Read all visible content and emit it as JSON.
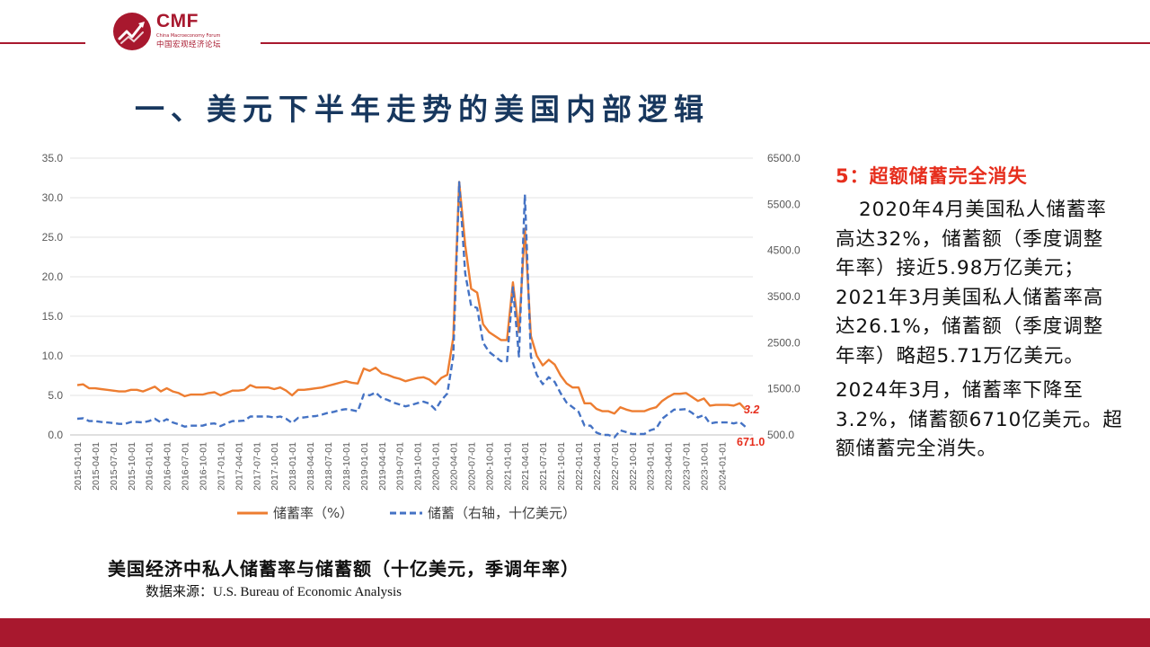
{
  "logo": {
    "brand": "CMF",
    "subtitle_en": "China Macroeconomy Forum",
    "subtitle_cn": "中国宏观经济论坛"
  },
  "page_title": "一、美元下半年走势的美国内部逻辑",
  "side_panel": {
    "title": "5：超额储蓄完全消失",
    "paragraph1": "2020年4月美国私人储蓄率高达32%，储蓄额（季度调整年率）接近5.98万亿美元；2021年3月美国私人储蓄率高达26.1%，储蓄额（季度调整年率）略超5.71万亿美元。",
    "paragraph2": "2024年3月，储蓄率下降至3.2%，储蓄额6710亿美元。超额储蓄完全消失。"
  },
  "caption": "美国经济中私人储蓄率与储蓄额（十亿美元，季调年率）",
  "source": "数据来源：U.S. Bureau of Economic Analysis",
  "colors": {
    "accent": "#a8182e",
    "rate_series": "#ed7d31",
    "amount_series": "#4472c4",
    "title": "#17375e",
    "highlight": "#e62e1d"
  },
  "chart_data": {
    "type": "line",
    "start_month": "2015-01",
    "x_tick_labels": [
      "2015-01-01",
      "2015-04-01",
      "2015-07-01",
      "2015-10-01",
      "2016-01-01",
      "2016-04-01",
      "2016-07-01",
      "2016-10-01",
      "2017-01-01",
      "2017-04-01",
      "2017-07-01",
      "2017-10-01",
      "2018-01-01",
      "2018-04-01",
      "2018-07-01",
      "2018-10-01",
      "2019-01-01",
      "2019-04-01",
      "2019-07-01",
      "2019-10-01",
      "2020-01-01",
      "2020-04-01",
      "2020-07-01",
      "2020-10-01",
      "2021-01-01",
      "2021-04-01",
      "2021-07-01",
      "2021-10-01",
      "2022-01-01",
      "2022-04-01",
      "2022-07-01",
      "2022-10-01",
      "2023-01-01",
      "2023-04-01",
      "2023-07-01",
      "2023-10-01",
      "2024-01-01"
    ],
    "y_left": {
      "min": 0,
      "max": 35,
      "ticks": [
        "0.0",
        "5.0",
        "10.0",
        "15.0",
        "20.0",
        "25.0",
        "30.0",
        "35.0"
      ]
    },
    "y_right": {
      "min": 500,
      "max": 6500,
      "ticks": [
        "500.0",
        "1500.0",
        "2500.0",
        "3500.0",
        "4500.0",
        "5500.0",
        "6500.0"
      ]
    },
    "grid": true,
    "legend_position": "bottom",
    "series": [
      {
        "name": "储蓄率（%）",
        "axis": "left",
        "color": "#ed7d31",
        "dash": "solid",
        "values": [
          6.3,
          6.4,
          5.9,
          5.9,
          5.8,
          5.7,
          5.6,
          5.5,
          5.5,
          5.7,
          5.7,
          5.5,
          5.8,
          6.1,
          5.5,
          5.9,
          5.5,
          5.3,
          4.9,
          5.1,
          5.1,
          5.1,
          5.3,
          5.4,
          5.0,
          5.3,
          5.6,
          5.6,
          5.7,
          6.3,
          6.0,
          6.0,
          6.0,
          5.8,
          6.0,
          5.6,
          5.0,
          5.7,
          5.7,
          5.8,
          5.9,
          6.0,
          6.2,
          6.4,
          6.6,
          6.8,
          6.6,
          6.5,
          8.4,
          8.1,
          8.5,
          7.8,
          7.6,
          7.3,
          7.1,
          6.8,
          7.0,
          7.2,
          7.3,
          7.0,
          6.4,
          7.2,
          7.6,
          12.3,
          32.0,
          24.0,
          18.5,
          18.0,
          14.0,
          13.0,
          12.5,
          12.0,
          12.0,
          19.3,
          13.0,
          26.1,
          12.5,
          10.0,
          8.8,
          9.5,
          8.9,
          7.5,
          6.5,
          6.0,
          6.0,
          4.0,
          4.0,
          3.3,
          3.0,
          3.0,
          2.7,
          3.5,
          3.2,
          3.0,
          3.0,
          3.0,
          3.3,
          3.5,
          4.3,
          4.8,
          5.2,
          5.2,
          5.3,
          4.8,
          4.3,
          4.6,
          3.7,
          3.8,
          3.8,
          3.8,
          3.7,
          4.0,
          3.2
        ],
        "end_label": "3.2"
      },
      {
        "name": "储蓄（右轴，十亿美元）",
        "axis": "right",
        "color": "#4472c4",
        "dash": "dashed",
        "values": [
          850,
          860,
          800,
          800,
          780,
          770,
          760,
          740,
          740,
          780,
          780,
          770,
          800,
          850,
          770,
          840,
          770,
          730,
          680,
          700,
          700,
          700,
          740,
          750,
          690,
          750,
          800,
          800,
          810,
          900,
          900,
          900,
          900,
          880,
          900,
          850,
          760,
          870,
          880,
          900,
          910,
          940,
          980,
          1000,
          1040,
          1060,
          1040,
          1010,
          1380,
          1360,
          1420,
          1300,
          1260,
          1200,
          1160,
          1120,
          1150,
          1190,
          1220,
          1180,
          1050,
          1250,
          1400,
          2200,
          5980,
          4000,
          3300,
          3250,
          2500,
          2300,
          2200,
          2100,
          2100,
          3700,
          2200,
          5710,
          2200,
          1800,
          1600,
          1750,
          1650,
          1400,
          1200,
          1100,
          1000,
          700,
          700,
          550,
          500,
          500,
          450,
          600,
          560,
          520,
          520,
          520,
          600,
          640,
          850,
          950,
          1050,
          1050,
          1060,
          980,
          880,
          930,
          750,
          770,
          770,
          770,
          750,
          780,
          671
        ],
        "end_label": "671.0"
      }
    ]
  }
}
